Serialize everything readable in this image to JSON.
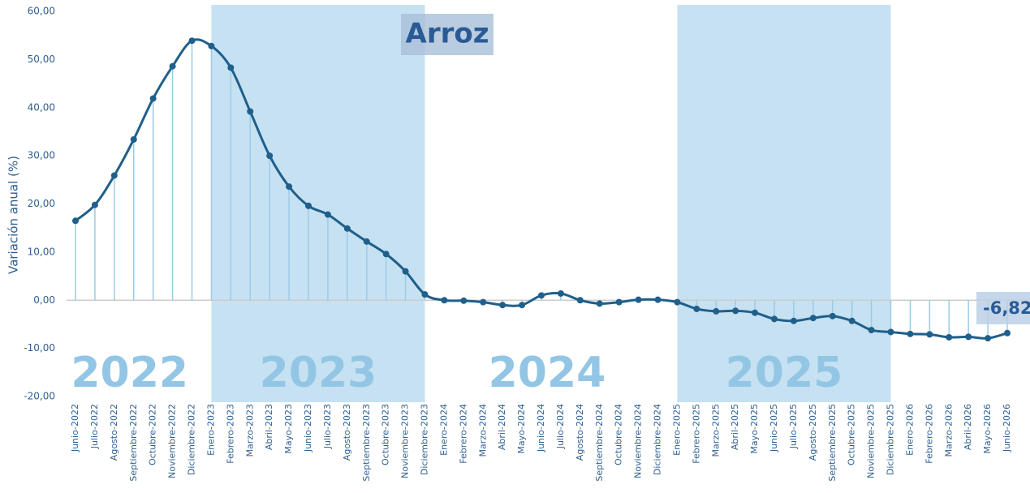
{
  "chart_data": {
    "type": "line",
    "title": "Arroz",
    "y_label": "Variación anual (%)",
    "categories": [
      "Junio-2022",
      "Julio-2022",
      "Agosto-2022",
      "Septiembre-2022",
      "Octubre-2022",
      "Noviembre-2022",
      "Diciembre-2022",
      "Enero-2023",
      "Febrero-2023",
      "Marzo-2023",
      "Abril-2023",
      "Mayo-2023",
      "Junio-2023",
      "Julio-2023",
      "Agosto-2023",
      "Septiembre-2023",
      "Octubre-2023",
      "Noviembre-2023",
      "Diciembre-2023",
      "Enero-2024",
      "Febrero-2024",
      "Marzo-2024",
      "Abril-2024",
      "Mayo-2024",
      "Junio-2024",
      "Julio-2024",
      "Agosto-2024",
      "Septiembre-2024",
      "Octubre-2024",
      "Noviembre-2024",
      "Diciembre-2024",
      "Enero-2025",
      "Febrero-2025",
      "Marzo-2025",
      "Abril-2025",
      "Mayo-2025",
      "Junio-2025",
      "Julio-2025",
      "Agosto-2025",
      "Septiembre-2025",
      "Octubre-2025",
      "Noviembre-2025",
      "Diciembre-2025",
      "Enero-2026",
      "Febrero-2026",
      "Marzo-2026",
      "Abril-2026",
      "Mayo-2026",
      "Junio-2026"
    ],
    "values": [
      16.5,
      19.8,
      25.9,
      33.4,
      41.9,
      48.6,
      53.9,
      52.8,
      48.3,
      39.2,
      30.0,
      23.6,
      19.6,
      17.8,
      14.9,
      12.2,
      9.6,
      6.0,
      1.2,
      0.0,
      -0.1,
      -0.4,
      -1.0,
      -1.0,
      1.0,
      1.4,
      0.0,
      -0.7,
      -0.4,
      0.1,
      0.1,
      -0.4,
      -1.8,
      -2.3,
      -2.2,
      -2.6,
      -3.9,
      -4.3,
      -3.7,
      -3.3,
      -4.3,
      -6.2,
      -6.6,
      -7.0,
      -7.1,
      -7.7,
      -7.6,
      -7.9,
      -6.82
    ],
    "value_labels": [
      null,
      null,
      null,
      null,
      null,
      null,
      null,
      null,
      null,
      null,
      null,
      null,
      null,
      null,
      null,
      null,
      null,
      null,
      null,
      null,
      null,
      null,
      null,
      null,
      null,
      null,
      null,
      null,
      null,
      null,
      null,
      null,
      null,
      null,
      null,
      null,
      null,
      null,
      null,
      null,
      null,
      null,
      null,
      null,
      null,
      null,
      null,
      null,
      "-6,82"
    ],
    "color": "#1f5f8b",
    "drop_line_color": "#9ccbe6",
    "ylim": [
      -20,
      60
    ],
    "yticks": [
      {
        "value": -20,
        "label": "-20,00"
      },
      {
        "value": -10,
        "label": "-10,00"
      },
      {
        "value": 0,
        "label": "0,00"
      },
      {
        "value": 10,
        "label": "10,00"
      },
      {
        "value": 20,
        "label": "20,00"
      },
      {
        "value": 30,
        "label": "30,00"
      },
      {
        "value": 40,
        "label": "40,00"
      },
      {
        "value": 50,
        "label": "50,00"
      },
      {
        "value": 60,
        "label": "60,00"
      }
    ],
    "periods": [
      {
        "label": "2022",
        "shaded": false
      },
      {
        "label": "2023",
        "shaded": true
      },
      {
        "label": "2024",
        "shaded": false
      },
      {
        "label": "2025",
        "shaded": true
      }
    ],
    "band_color": "#c6e1f2"
  }
}
